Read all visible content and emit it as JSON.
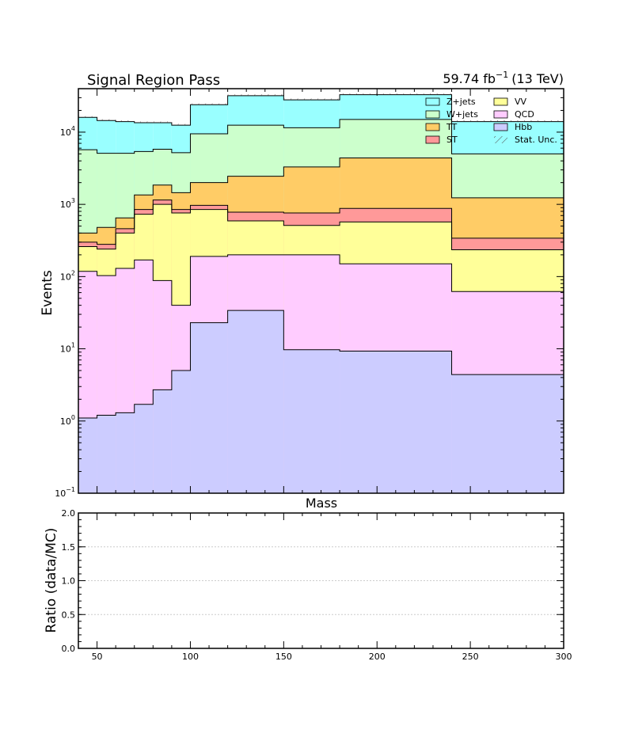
{
  "header": {
    "title": "Signal Region Pass",
    "lumi_value": "59.74 fb",
    "lumi_exp": "−1",
    "lumi_energy": "(13 TeV)"
  },
  "chart_data": {
    "type": "stacked-histogram",
    "xlabel": "Mass",
    "ylabel": "Events",
    "ratio_ylabel": "Ratio (data/MC)",
    "xlim": [
      40,
      300
    ],
    "ylim": [
      0.1,
      40000
    ],
    "yscale": "log",
    "ratio_ylim": [
      0,
      2
    ],
    "ratio_grid": "dotted",
    "legend_placement": "top-right",
    "xticks": [
      {
        "v": 50,
        "label": "50"
      },
      {
        "v": 100,
        "label": "100"
      },
      {
        "v": 150,
        "label": "150"
      },
      {
        "v": 200,
        "label": "200"
      },
      {
        "v": 250,
        "label": "250"
      },
      {
        "v": 300,
        "label": "300"
      }
    ],
    "yticks": [
      {
        "v": 0.1,
        "base": "10",
        "exp": "−1"
      },
      {
        "v": 1,
        "base": "10",
        "exp": "0"
      },
      {
        "v": 10,
        "base": "10",
        "exp": "1"
      },
      {
        "v": 100,
        "base": "10",
        "exp": "2"
      },
      {
        "v": 1000,
        "base": "10",
        "exp": "3"
      },
      {
        "v": 10000,
        "base": "10",
        "exp": "4"
      }
    ],
    "ratio_yticks": [
      {
        "v": 0,
        "label": "0.0"
      },
      {
        "v": 0.5,
        "label": "0.5"
      },
      {
        "v": 1,
        "label": "1.0"
      },
      {
        "v": 1.5,
        "label": "1.5"
      },
      {
        "v": 2,
        "label": "2.0"
      }
    ],
    "bin_edges": [
      40,
      50,
      60,
      70,
      80,
      90,
      100,
      120,
      150,
      180,
      240,
      300
    ],
    "series": [
      {
        "name": "Hbb",
        "color": "#ccccff",
        "cumulative": [
          1.1,
          1.2,
          1.3,
          1.7,
          2.7,
          5.0,
          23,
          34,
          9.7,
          9.3,
          4.4
        ]
      },
      {
        "name": "QCD",
        "color": "#ffccff",
        "cumulative": [
          118,
          103,
          130,
          170,
          88,
          40,
          190,
          200,
          200,
          150,
          62
        ]
      },
      {
        "name": "VV",
        "color": "#ffff99",
        "cumulative": [
          260,
          240,
          400,
          730,
          1000,
          760,
          850,
          590,
          510,
          570,
          235
        ]
      },
      {
        "name": "ST",
        "color": "#ff9999",
        "cumulative": [
          300,
          280,
          460,
          850,
          1150,
          850,
          970,
          780,
          760,
          880,
          340
        ]
      },
      {
        "name": "TT",
        "color": "#ffcc66",
        "cumulative": [
          400,
          480,
          650,
          1350,
          1850,
          1450,
          2000,
          2450,
          3300,
          4400,
          1230
        ]
      },
      {
        "name": "W+jets",
        "color": "#ccffcc",
        "cumulative": [
          5700,
          5100,
          5100,
          5400,
          5800,
          5200,
          9500,
          12500,
          11500,
          15000,
          5000
        ]
      },
      {
        "name": "Z+jets",
        "color": "#99ffff",
        "cumulative": [
          16000,
          14500,
          14000,
          13500,
          13500,
          12500,
          24000,
          32000,
          28000,
          33000,
          14000
        ]
      }
    ],
    "stat_unc_label": "Stat. Unc.",
    "legend": [
      {
        "name": "Z+jets",
        "color": "#99ffff",
        "style": "fill"
      },
      {
        "name": "VV",
        "color": "#ffff99",
        "style": "fill"
      },
      {
        "name": "W+jets",
        "color": "#ccffcc",
        "style": "fill"
      },
      {
        "name": "QCD",
        "color": "#ffccff",
        "style": "fill"
      },
      {
        "name": "TT",
        "color": "#ffcc66",
        "style": "fill"
      },
      {
        "name": "Hbb",
        "color": "#ccccff",
        "style": "fill"
      },
      {
        "name": "ST",
        "color": "#ff9999",
        "style": "fill"
      },
      {
        "name": "Stat. Unc.",
        "color": "#000000",
        "style": "hatch"
      }
    ]
  }
}
